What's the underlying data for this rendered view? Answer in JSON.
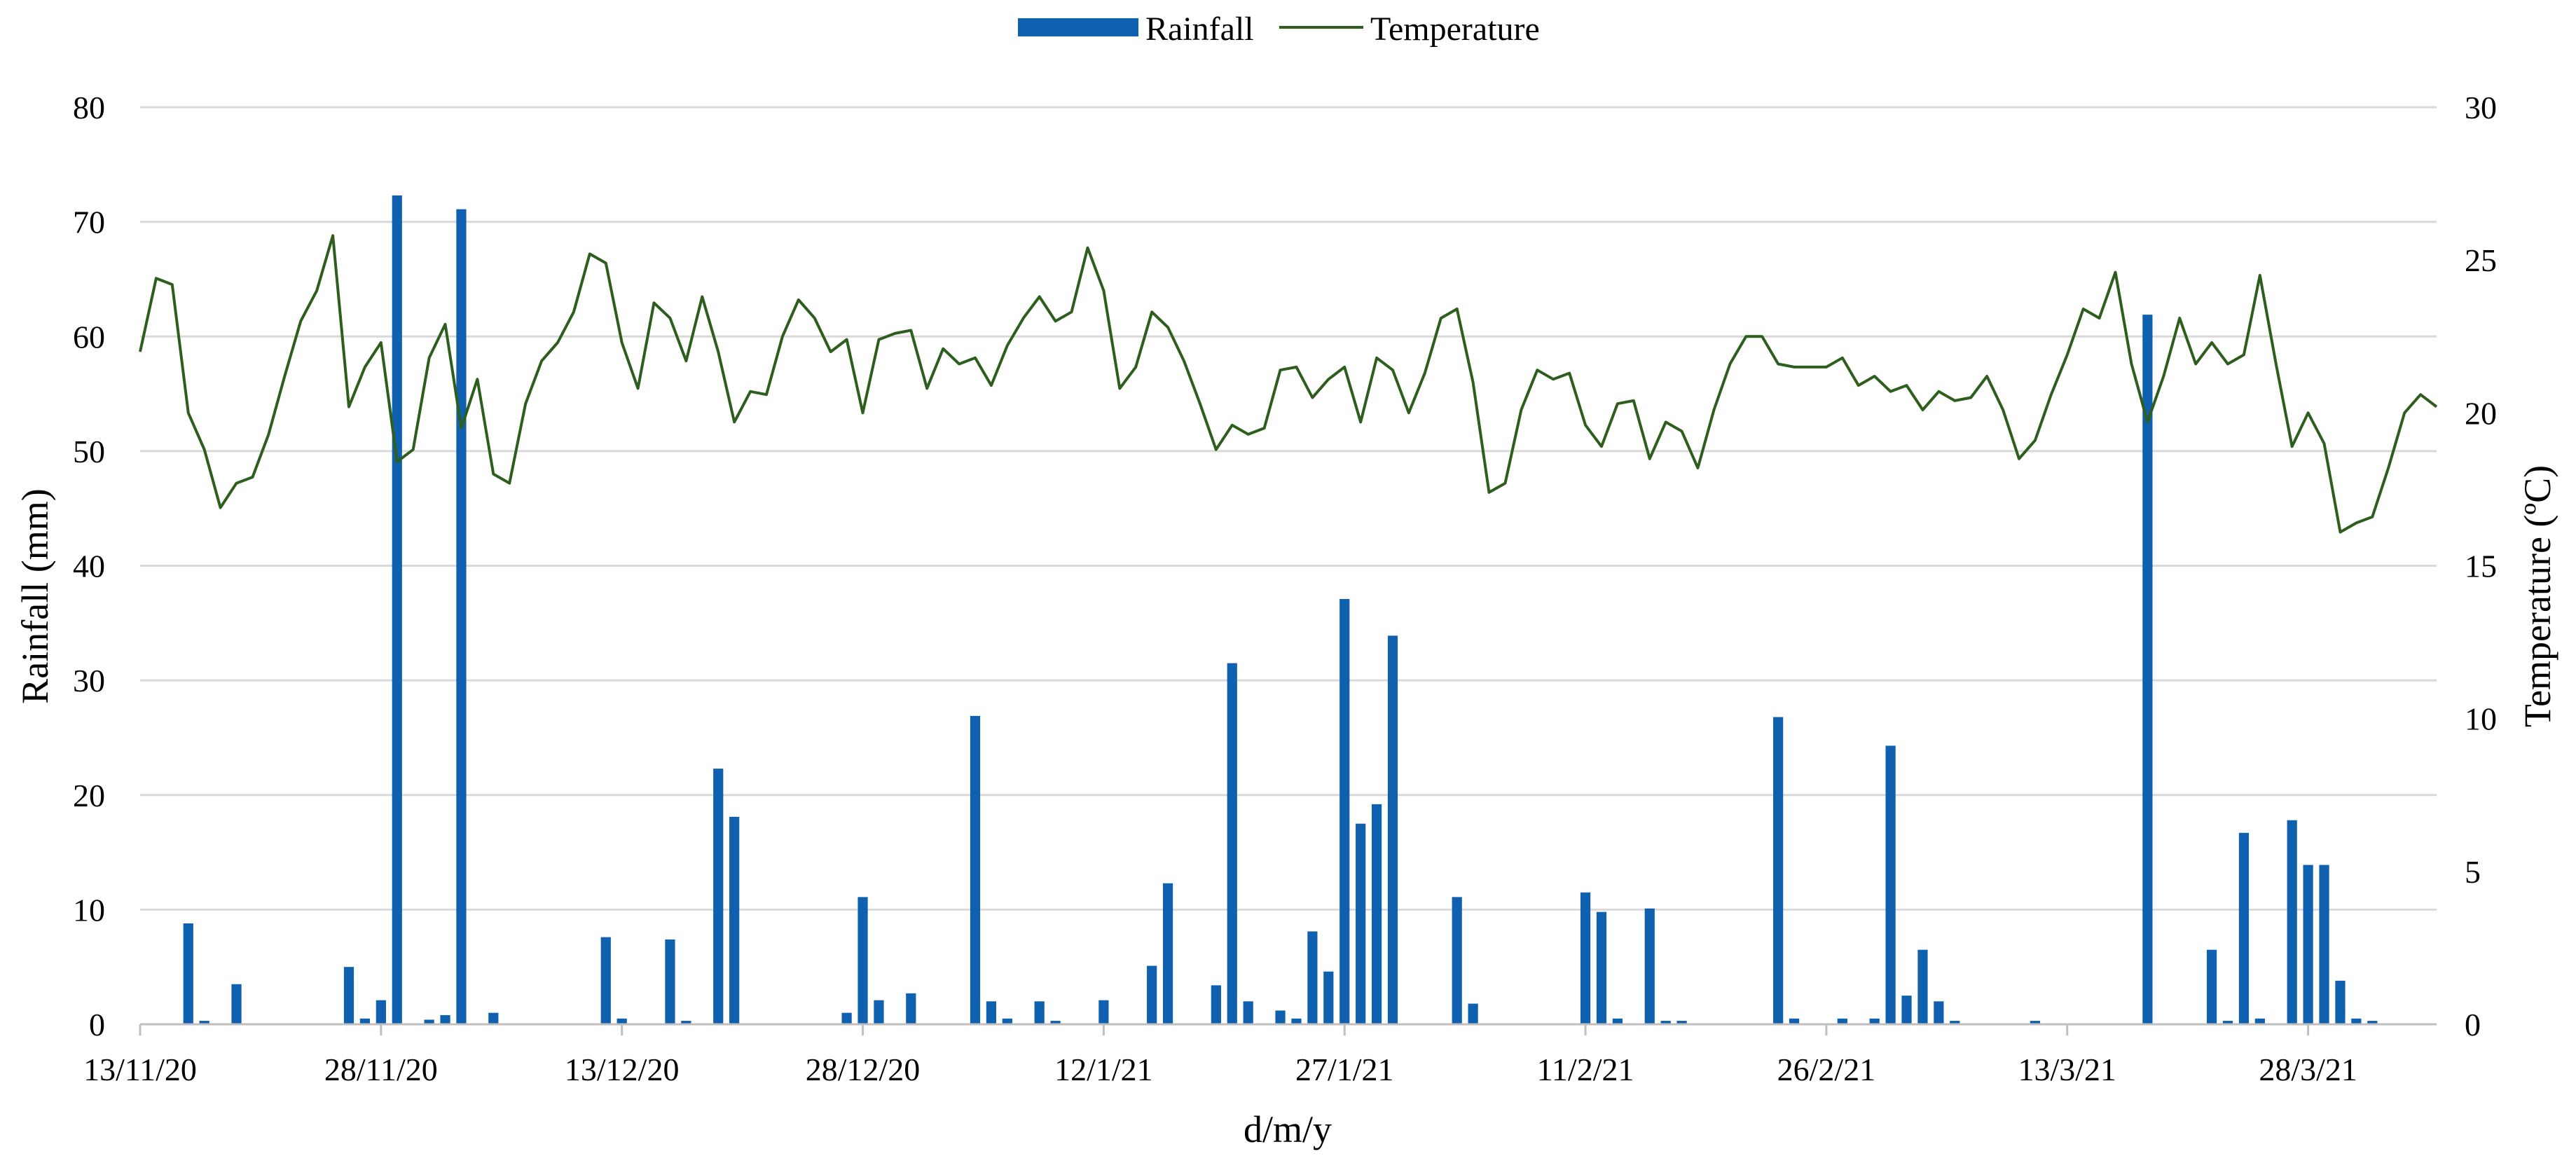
{
  "chart_data": {
    "type": "bar",
    "combo": "bar + line (dual axis)",
    "xlabel": "d/m/y",
    "ylabel_left": "Rainfall (mm)",
    "ylabel_right": "Temperature (ºC)",
    "ylim_left": [
      0,
      80
    ],
    "ylim_right": [
      0,
      30
    ],
    "yticks_left": [
      "0",
      "10",
      "20",
      "30",
      "40",
      "50",
      "60",
      "70",
      "80"
    ],
    "yticks_right": [
      "0",
      "5",
      "10",
      "15",
      "20",
      "25",
      "30"
    ],
    "x_start": "13/11/20",
    "x_end": "5/4/21",
    "xtick_labels": [
      "13/11/20",
      "28/11/20",
      "13/12/20",
      "28/12/20",
      "12/1/21",
      "27/1/21",
      "11/2/21",
      "26/2/21",
      "13/3/21",
      "28/3/21"
    ],
    "grid": "horizontal",
    "legend_position": "top-center",
    "colors": {
      "rainfall": "#1060b0",
      "temperature": "#2e5e1e"
    },
    "series": [
      {
        "name": "Rainfall",
        "kind": "bar",
        "axis": "left",
        "points": [
          [
            "16/11/20",
            8.8
          ],
          [
            "17/11/20",
            0.3
          ],
          [
            "19/11/20",
            3.5
          ],
          [
            "26/11/20",
            5.0
          ],
          [
            "27/11/20",
            0.5
          ],
          [
            "28/11/20",
            2.1
          ],
          [
            "29/11/20",
            72.3
          ],
          [
            "1/12/20",
            0.4
          ],
          [
            "2/12/20",
            0.8
          ],
          [
            "3/12/20",
            71.1
          ],
          [
            "5/12/20",
            1.0
          ],
          [
            "12/12/20",
            7.6
          ],
          [
            "13/12/20",
            0.5
          ],
          [
            "16/12/20",
            7.4
          ],
          [
            "17/12/20",
            0.3
          ],
          [
            "19/12/20",
            22.3
          ],
          [
            "20/12/20",
            18.1
          ],
          [
            "27/12/20",
            1.0
          ],
          [
            "28/12/20",
            11.1
          ],
          [
            "29/12/20",
            2.1
          ],
          [
            "31/12/20",
            2.7
          ],
          [
            "4/1/21",
            26.9
          ],
          [
            "5/1/21",
            2.0
          ],
          [
            "6/1/21",
            0.5
          ],
          [
            "8/1/21",
            2.0
          ],
          [
            "9/1/21",
            0.3
          ],
          [
            "12/1/21",
            2.1
          ],
          [
            "15/1/21",
            5.1
          ],
          [
            "16/1/21",
            12.3
          ],
          [
            "19/1/21",
            3.4
          ],
          [
            "20/1/21",
            31.5
          ],
          [
            "21/1/21",
            2.0
          ],
          [
            "23/1/21",
            1.2
          ],
          [
            "24/1/21",
            0.5
          ],
          [
            "25/1/21",
            8.1
          ],
          [
            "26/1/21",
            4.6
          ],
          [
            "27/1/21",
            37.1
          ],
          [
            "28/1/21",
            17.5
          ],
          [
            "29/1/21",
            19.2
          ],
          [
            "30/1/21",
            33.9
          ],
          [
            "3/2/21",
            11.1
          ],
          [
            "4/2/21",
            1.8
          ],
          [
            "11/2/21",
            11.5
          ],
          [
            "12/2/21",
            9.8
          ],
          [
            "13/2/21",
            0.5
          ],
          [
            "15/2/21",
            10.1
          ],
          [
            "16/2/21",
            0.3
          ],
          [
            "17/2/21",
            0.3
          ],
          [
            "23/2/21",
            26.8
          ],
          [
            "24/2/21",
            0.5
          ],
          [
            "27/2/21",
            0.5
          ],
          [
            "1/3/21",
            0.5
          ],
          [
            "2/3/21",
            24.3
          ],
          [
            "3/3/21",
            2.5
          ],
          [
            "4/3/21",
            6.5
          ],
          [
            "5/3/21",
            2.0
          ],
          [
            "6/3/21",
            0.3
          ],
          [
            "11/3/21",
            0.3
          ],
          [
            "18/3/21",
            61.9
          ],
          [
            "22/3/21",
            6.5
          ],
          [
            "23/3/21",
            0.3
          ],
          [
            "24/3/21",
            16.7
          ],
          [
            "25/3/21",
            0.5
          ],
          [
            "27/3/21",
            17.8
          ],
          [
            "28/3/21",
            13.9
          ],
          [
            "29/3/21",
            13.9
          ],
          [
            "30/3/21",
            3.8
          ],
          [
            "31/3/21",
            0.5
          ],
          [
            "1/4/21",
            0.3
          ]
        ]
      },
      {
        "name": "Temperature",
        "kind": "line",
        "axis": "right",
        "points": [
          [
            "13/11/20",
            22.0
          ],
          [
            "14/11/20",
            24.4
          ],
          [
            "15/11/20",
            24.2
          ],
          [
            "16/11/20",
            20.0
          ],
          [
            "17/11/20",
            18.8
          ],
          [
            "18/11/20",
            16.9
          ],
          [
            "19/11/20",
            17.7
          ],
          [
            "20/11/20",
            17.9
          ],
          [
            "21/11/20",
            19.3
          ],
          [
            "22/11/20",
            21.2
          ],
          [
            "23/11/20",
            23.0
          ],
          [
            "24/11/20",
            24.0
          ],
          [
            "25/11/20",
            25.8
          ],
          [
            "26/11/20",
            20.2
          ],
          [
            "27/11/20",
            21.5
          ],
          [
            "28/11/20",
            22.3
          ],
          [
            "29/11/20",
            18.4
          ],
          [
            "30/11/20",
            18.8
          ],
          [
            "1/12/20",
            21.8
          ],
          [
            "2/12/20",
            22.9
          ],
          [
            "3/12/20",
            19.5
          ],
          [
            "4/12/20",
            21.1
          ],
          [
            "5/12/20",
            18.0
          ],
          [
            "6/12/20",
            17.7
          ],
          [
            "7/12/20",
            20.3
          ],
          [
            "8/12/20",
            21.7
          ],
          [
            "9/12/20",
            22.3
          ],
          [
            "10/12/20",
            23.3
          ],
          [
            "11/12/20",
            25.2
          ],
          [
            "12/12/20",
            24.9
          ],
          [
            "13/12/20",
            22.3
          ],
          [
            "14/12/20",
            20.8
          ],
          [
            "15/12/20",
            23.6
          ],
          [
            "16/12/20",
            23.1
          ],
          [
            "17/12/20",
            21.7
          ],
          [
            "18/12/20",
            23.8
          ],
          [
            "19/12/20",
            22.0
          ],
          [
            "20/12/20",
            19.7
          ],
          [
            "21/12/20",
            20.7
          ],
          [
            "22/12/20",
            20.6
          ],
          [
            "23/12/20",
            22.5
          ],
          [
            "24/12/20",
            23.7
          ],
          [
            "25/12/20",
            23.1
          ],
          [
            "26/12/20",
            22.0
          ],
          [
            "27/12/20",
            22.4
          ],
          [
            "28/12/20",
            20.0
          ],
          [
            "29/12/20",
            22.4
          ],
          [
            "30/12/20",
            22.6
          ],
          [
            "31/12/20",
            22.7
          ],
          [
            "1/1/21",
            20.8
          ],
          [
            "2/1/21",
            22.1
          ],
          [
            "3/1/21",
            21.6
          ],
          [
            "4/1/21",
            21.8
          ],
          [
            "5/1/21",
            20.9
          ],
          [
            "6/1/21",
            22.2
          ],
          [
            "7/1/21",
            23.1
          ],
          [
            "8/1/21",
            23.8
          ],
          [
            "9/1/21",
            23.0
          ],
          [
            "10/1/21",
            23.3
          ],
          [
            "11/1/21",
            25.4
          ],
          [
            "12/1/21",
            24.0
          ],
          [
            "13/1/21",
            20.8
          ],
          [
            "14/1/21",
            21.5
          ],
          [
            "15/1/21",
            23.3
          ],
          [
            "16/1/21",
            22.8
          ],
          [
            "17/1/21",
            21.7
          ],
          [
            "18/1/21",
            20.3
          ],
          [
            "19/1/21",
            18.8
          ],
          [
            "20/1/21",
            19.6
          ],
          [
            "21/1/21",
            19.3
          ],
          [
            "22/1/21",
            19.5
          ],
          [
            "23/1/21",
            21.4
          ],
          [
            "24/1/21",
            21.5
          ],
          [
            "25/1/21",
            20.5
          ],
          [
            "26/1/21",
            21.1
          ],
          [
            "27/1/21",
            21.5
          ],
          [
            "28/1/21",
            19.7
          ],
          [
            "29/1/21",
            21.8
          ],
          [
            "30/1/21",
            21.4
          ],
          [
            "31/1/21",
            20.0
          ],
          [
            "1/2/21",
            21.3
          ],
          [
            "2/2/21",
            23.1
          ],
          [
            "3/2/21",
            23.4
          ],
          [
            "4/2/21",
            21.0
          ],
          [
            "5/2/21",
            17.4
          ],
          [
            "6/2/21",
            17.7
          ],
          [
            "7/2/21",
            20.1
          ],
          [
            "8/2/21",
            21.4
          ],
          [
            "9/2/21",
            21.1
          ],
          [
            "10/2/21",
            21.3
          ],
          [
            "11/2/21",
            19.6
          ],
          [
            "12/2/21",
            18.9
          ],
          [
            "13/2/21",
            20.3
          ],
          [
            "14/2/21",
            20.4
          ],
          [
            "15/2/21",
            18.5
          ],
          [
            "16/2/21",
            19.7
          ],
          [
            "17/2/21",
            19.4
          ],
          [
            "18/2/21",
            18.2
          ],
          [
            "19/2/21",
            20.1
          ],
          [
            "20/2/21",
            21.6
          ],
          [
            "21/2/21",
            22.5
          ],
          [
            "22/2/21",
            22.5
          ],
          [
            "23/2/21",
            21.6
          ],
          [
            "24/2/21",
            21.5
          ],
          [
            "25/2/21",
            21.5
          ],
          [
            "26/2/21",
            21.5
          ],
          [
            "27/2/21",
            21.8
          ],
          [
            "28/2/21",
            20.9
          ],
          [
            "1/3/21",
            21.2
          ],
          [
            "2/3/21",
            20.7
          ],
          [
            "3/3/21",
            20.9
          ],
          [
            "4/3/21",
            20.1
          ],
          [
            "5/3/21",
            20.7
          ],
          [
            "6/3/21",
            20.4
          ],
          [
            "7/3/21",
            20.5
          ],
          [
            "8/3/21",
            21.2
          ],
          [
            "9/3/21",
            20.1
          ],
          [
            "10/3/21",
            18.5
          ],
          [
            "11/3/21",
            19.1
          ],
          [
            "12/3/21",
            20.6
          ],
          [
            "13/3/21",
            21.9
          ],
          [
            "14/3/21",
            23.4
          ],
          [
            "15/3/21",
            23.1
          ],
          [
            "16/3/21",
            24.6
          ],
          [
            "17/3/21",
            21.6
          ],
          [
            "18/3/21",
            19.7
          ],
          [
            "19/3/21",
            21.2
          ],
          [
            "20/3/21",
            23.1
          ],
          [
            "21/3/21",
            21.6
          ],
          [
            "22/3/21",
            22.3
          ],
          [
            "23/3/21",
            21.6
          ],
          [
            "24/3/21",
            21.9
          ],
          [
            "25/3/21",
            24.5
          ],
          [
            "26/3/21",
            21.6
          ],
          [
            "27/3/21",
            18.9
          ],
          [
            "28/3/21",
            20.0
          ],
          [
            "29/3/21",
            19.0
          ],
          [
            "30/3/21",
            16.1
          ],
          [
            "31/3/21",
            16.4
          ],
          [
            "1/4/21",
            16.6
          ],
          [
            "2/4/21",
            18.2
          ],
          [
            "3/4/21",
            20.0
          ],
          [
            "4/4/21",
            20.6
          ],
          [
            "5/4/21",
            20.2
          ]
        ]
      }
    ]
  }
}
